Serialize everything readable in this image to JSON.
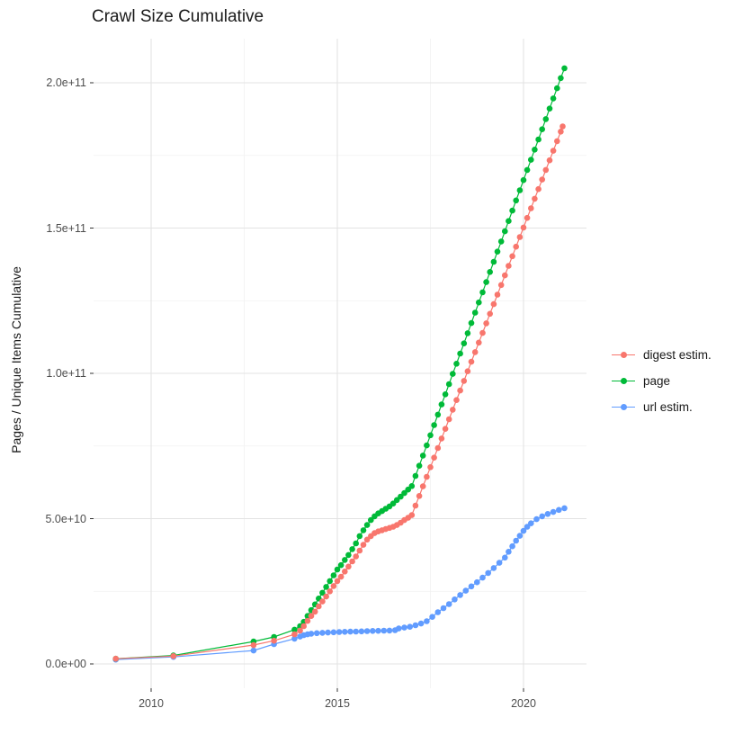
{
  "title": "Crawl Size Cumulative",
  "colors": {
    "digest": "#F8766D",
    "page": "#00BA38",
    "url": "#619CFF",
    "grid_major": "#e3e3e3",
    "grid_minor": "#f1f1f1",
    "tick_mark": "#333333",
    "tick_text": "#4d4d4d",
    "title_text": "#1a1a1a",
    "background": "#ffffff"
  },
  "y_axis": {
    "title": "Pages / Unique Items Cumulative",
    "ticks": [
      {
        "label": "0.0e+00",
        "value_e9": 0
      },
      {
        "label": "5.0e+10",
        "value_e9": 50
      },
      {
        "label": "1.0e+11",
        "value_e9": 100
      },
      {
        "label": "1.5e+11",
        "value_e9": 150
      },
      {
        "label": "2.0e+11",
        "value_e9": 200
      }
    ],
    "minor_ticks_e9": [
      25,
      75,
      125,
      175
    ]
  },
  "x_axis": {
    "ticks": [
      {
        "label": "2010",
        "value": 2010
      },
      {
        "label": "2015",
        "value": 2015
      },
      {
        "label": "2020",
        "value": 2020
      }
    ],
    "minor_ticks": [
      2012.5,
      2017.5
    ]
  },
  "legend": {
    "position": "right",
    "items": [
      {
        "label": "digest estim.",
        "color": "#F8766D"
      },
      {
        "label": "page",
        "color": "#00BA38"
      },
      {
        "label": "url estim.",
        "color": "#619CFF"
      }
    ]
  },
  "chart_data": {
    "type": "line",
    "title": "Crawl Size Cumulative",
    "xlabel": "",
    "ylabel": "Pages / Unique Items Cumulative",
    "x_unit": "year (decimal)",
    "y_unit": "items, in units of 1e9 (billions)",
    "xlim": [
      2008.45,
      2021.7
    ],
    "ylim_e9": [
      -8,
      215
    ],
    "grid": true,
    "legend_position": "right",
    "render_order": [
      "url estim.",
      "page",
      "digest estim."
    ],
    "series": [
      {
        "name": "digest estim.",
        "color": "#F8766D",
        "points": [
          [
            2009.05,
            1.8
          ],
          [
            2010.6,
            2.7
          ],
          [
            2012.75,
            6.5
          ],
          [
            2013.3,
            8.0
          ],
          [
            2013.85,
            10.2
          ],
          [
            2014.0,
            11.5
          ],
          [
            2014.1,
            13
          ],
          [
            2014.2,
            14.8
          ],
          [
            2014.3,
            16.5
          ],
          [
            2014.4,
            18
          ],
          [
            2014.5,
            19.8
          ],
          [
            2014.6,
            21.5
          ],
          [
            2014.7,
            23.2
          ],
          [
            2014.8,
            25
          ],
          [
            2014.9,
            26.8
          ],
          [
            2015.0,
            28.5
          ],
          [
            2015.1,
            30
          ],
          [
            2015.2,
            31.8
          ],
          [
            2015.3,
            33.5
          ],
          [
            2015.4,
            35.3
          ],
          [
            2015.5,
            37
          ],
          [
            2015.6,
            39
          ],
          [
            2015.7,
            41
          ],
          [
            2015.8,
            42.8
          ],
          [
            2015.9,
            44
          ],
          [
            2016.0,
            45
          ],
          [
            2016.1,
            45.6
          ],
          [
            2016.2,
            46
          ],
          [
            2016.3,
            46.4
          ],
          [
            2016.4,
            46.8
          ],
          [
            2016.5,
            47.2
          ],
          [
            2016.6,
            47.8
          ],
          [
            2016.7,
            48.6
          ],
          [
            2016.8,
            49.5
          ],
          [
            2016.9,
            50.3
          ],
          [
            2017.0,
            51.2
          ],
          [
            2017.1,
            54.5
          ],
          [
            2017.2,
            57.8
          ],
          [
            2017.3,
            61.1
          ],
          [
            2017.4,
            64.4
          ],
          [
            2017.5,
            67.7
          ],
          [
            2017.6,
            71
          ],
          [
            2017.7,
            74.3
          ],
          [
            2017.8,
            77.6
          ],
          [
            2017.9,
            80.9
          ],
          [
            2018.0,
            84.2
          ],
          [
            2018.1,
            87.5
          ],
          [
            2018.2,
            90.8
          ],
          [
            2018.3,
            94.1
          ],
          [
            2018.4,
            97.4
          ],
          [
            2018.5,
            100.7
          ],
          [
            2018.6,
            104
          ],
          [
            2018.7,
            107.3
          ],
          [
            2018.8,
            110.6
          ],
          [
            2018.9,
            113.9
          ],
          [
            2019.0,
            117.2
          ],
          [
            2019.1,
            120.5
          ],
          [
            2019.2,
            123.8
          ],
          [
            2019.3,
            127.1
          ],
          [
            2019.4,
            130.4
          ],
          [
            2019.5,
            133.7
          ],
          [
            2019.6,
            137
          ],
          [
            2019.7,
            140.3
          ],
          [
            2019.8,
            143.6
          ],
          [
            2019.9,
            146.9
          ],
          [
            2020.0,
            150.2
          ],
          [
            2020.1,
            153.5
          ],
          [
            2020.2,
            156.8
          ],
          [
            2020.3,
            160.1
          ],
          [
            2020.4,
            163.4
          ],
          [
            2020.5,
            166.7
          ],
          [
            2020.6,
            170
          ],
          [
            2020.7,
            173.3
          ],
          [
            2020.8,
            176.6
          ],
          [
            2020.9,
            179.9
          ],
          [
            2021.0,
            183.2
          ],
          [
            2021.05,
            185
          ]
        ]
      },
      {
        "name": "page",
        "color": "#00BA38",
        "points": [
          [
            2009.05,
            1.8
          ],
          [
            2010.6,
            2.9
          ],
          [
            2012.75,
            7.7
          ],
          [
            2013.3,
            9.3
          ],
          [
            2013.85,
            11.8
          ],
          [
            2014.0,
            13
          ],
          [
            2014.1,
            14.5
          ],
          [
            2014.2,
            16.5
          ],
          [
            2014.3,
            18.5
          ],
          [
            2014.4,
            20.5
          ],
          [
            2014.5,
            22.5
          ],
          [
            2014.6,
            24.5
          ],
          [
            2014.7,
            26.5
          ],
          [
            2014.8,
            28.5
          ],
          [
            2014.9,
            30.5
          ],
          [
            2015.0,
            32.5
          ],
          [
            2015.1,
            34
          ],
          [
            2015.2,
            35.8
          ],
          [
            2015.3,
            37.5
          ],
          [
            2015.4,
            39.5
          ],
          [
            2015.5,
            41.5
          ],
          [
            2015.6,
            44
          ],
          [
            2015.7,
            46
          ],
          [
            2015.8,
            47.8
          ],
          [
            2015.9,
            49.5
          ],
          [
            2016.0,
            50.8
          ],
          [
            2016.1,
            51.8
          ],
          [
            2016.2,
            52.6
          ],
          [
            2016.3,
            53.4
          ],
          [
            2016.4,
            54.2
          ],
          [
            2016.5,
            55.2
          ],
          [
            2016.6,
            56.4
          ],
          [
            2016.7,
            57.6
          ],
          [
            2016.8,
            58.8
          ],
          [
            2016.9,
            60
          ],
          [
            2017.0,
            61.2
          ],
          [
            2017.1,
            64.7
          ],
          [
            2017.2,
            68.2
          ],
          [
            2017.3,
            71.7
          ],
          [
            2017.4,
            75.2
          ],
          [
            2017.5,
            78.7
          ],
          [
            2017.6,
            82.2
          ],
          [
            2017.7,
            85.8
          ],
          [
            2017.8,
            89.3
          ],
          [
            2017.9,
            92.8
          ],
          [
            2018.0,
            96.3
          ],
          [
            2018.1,
            99.8
          ],
          [
            2018.2,
            103.3
          ],
          [
            2018.3,
            106.8
          ],
          [
            2018.4,
            110.3
          ],
          [
            2018.5,
            113.8
          ],
          [
            2018.6,
            117.3
          ],
          [
            2018.7,
            120.9
          ],
          [
            2018.8,
            124.4
          ],
          [
            2018.9,
            127.9
          ],
          [
            2019.0,
            131.4
          ],
          [
            2019.1,
            134.9
          ],
          [
            2019.2,
            138.4
          ],
          [
            2019.3,
            141.9
          ],
          [
            2019.4,
            145.4
          ],
          [
            2019.5,
            148.9
          ],
          [
            2019.6,
            152.4
          ],
          [
            2019.7,
            156
          ],
          [
            2019.8,
            159.5
          ],
          [
            2019.9,
            163
          ],
          [
            2020.0,
            166.5
          ],
          [
            2020.1,
            170
          ],
          [
            2020.2,
            173.5
          ],
          [
            2020.3,
            177
          ],
          [
            2020.4,
            180.5
          ],
          [
            2020.5,
            184
          ],
          [
            2020.6,
            187.5
          ],
          [
            2020.7,
            191.1
          ],
          [
            2020.8,
            194.6
          ],
          [
            2020.9,
            198.1
          ],
          [
            2021.0,
            201.6
          ],
          [
            2021.1,
            205
          ]
        ]
      },
      {
        "name": "url estim.",
        "color": "#619CFF",
        "points": [
          [
            2009.05,
            1.5
          ],
          [
            2010.6,
            2.4
          ],
          [
            2012.75,
            4.6
          ],
          [
            2013.3,
            6.8
          ],
          [
            2013.85,
            8.7
          ],
          [
            2014.0,
            9.4
          ],
          [
            2014.1,
            9.9
          ],
          [
            2014.2,
            10.2
          ],
          [
            2014.3,
            10.4
          ],
          [
            2014.45,
            10.6
          ],
          [
            2014.6,
            10.7
          ],
          [
            2014.75,
            10.8
          ],
          [
            2014.9,
            10.9
          ],
          [
            2015.05,
            11.0
          ],
          [
            2015.2,
            11.05
          ],
          [
            2015.35,
            11.1
          ],
          [
            2015.5,
            11.15
          ],
          [
            2015.65,
            11.2
          ],
          [
            2015.8,
            11.3
          ],
          [
            2015.95,
            11.35
          ],
          [
            2016.1,
            11.4
          ],
          [
            2016.25,
            11.45
          ],
          [
            2016.4,
            11.5
          ],
          [
            2016.55,
            11.6
          ],
          [
            2016.65,
            12.2
          ],
          [
            2016.8,
            12.5
          ],
          [
            2016.95,
            12.8
          ],
          [
            2017.1,
            13.3
          ],
          [
            2017.25,
            13.9
          ],
          [
            2017.4,
            14.7
          ],
          [
            2017.55,
            16.2
          ],
          [
            2017.7,
            17.8
          ],
          [
            2017.85,
            19.2
          ],
          [
            2018.0,
            20.6
          ],
          [
            2018.15,
            22.2
          ],
          [
            2018.3,
            23.7
          ],
          [
            2018.45,
            25.2
          ],
          [
            2018.6,
            26.7
          ],
          [
            2018.75,
            28.1
          ],
          [
            2018.9,
            29.7
          ],
          [
            2019.05,
            31.3
          ],
          [
            2019.2,
            33
          ],
          [
            2019.35,
            34.8
          ],
          [
            2019.5,
            36.6
          ],
          [
            2019.6,
            38.6
          ],
          [
            2019.7,
            40.5
          ],
          [
            2019.8,
            42.4
          ],
          [
            2019.9,
            44.1
          ],
          [
            2020.0,
            45.8
          ],
          [
            2020.1,
            47.2
          ],
          [
            2020.2,
            48.4
          ],
          [
            2020.35,
            49.8
          ],
          [
            2020.5,
            50.8
          ],
          [
            2020.65,
            51.6
          ],
          [
            2020.8,
            52.3
          ],
          [
            2020.95,
            53
          ],
          [
            2021.1,
            53.6
          ]
        ]
      }
    ]
  }
}
